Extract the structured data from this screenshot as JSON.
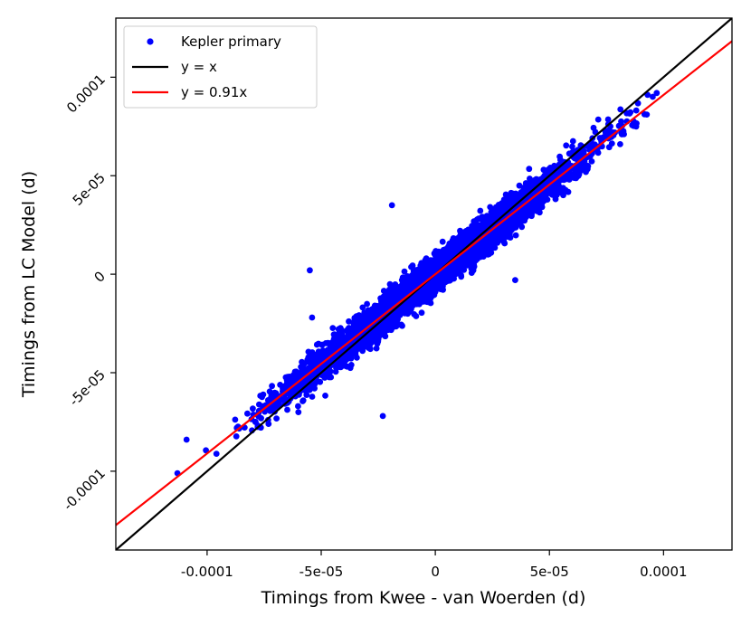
{
  "chart_data": {
    "type": "scatter",
    "title": "",
    "xlabel": "Timings from Kwee - van Woerden (d)",
    "ylabel": "Timings from LC Model (d)",
    "xlim": [
      -0.00014,
      0.00013
    ],
    "ylim": [
      -0.00014,
      0.00013
    ],
    "xticks": [
      -0.0001,
      -5e-05,
      0,
      5e-05,
      0.0001
    ],
    "xtick_labels": [
      "-0.0001",
      "-5e-05",
      "0",
      "5e-05",
      "0.0001"
    ],
    "yticks": [
      -0.0001,
      -5e-05,
      0,
      5e-05,
      0.0001
    ],
    "ytick_labels": [
      "-0.0001",
      "-5e-05",
      "0",
      "5e-05",
      "0.0001"
    ],
    "grid": false,
    "legend_position": "top-left",
    "series": [
      {
        "name": "Kepler primary",
        "kind": "scatter",
        "color": "#0000ff",
        "approx_point_count": 6000,
        "slope": 0.91,
        "scatter_std": 4.3e-06,
        "x_range": [
          -0.000115,
          9.8e-05
        ],
        "outliers": [
          [
            -5.5e-05,
            2e-06
          ],
          [
            -5.4e-05,
            -2.2e-05
          ],
          [
            -1.9e-05,
            3.5e-05
          ],
          [
            -2.3e-05,
            -7.2e-05
          ],
          [
            3.5e-05,
            -3e-06
          ],
          [
            9.7e-05,
            9.2e-05
          ],
          [
            9.3e-05,
            9.1e-05
          ],
          [
            -0.000113,
            -0.000101
          ],
          [
            -0.000109,
            -8.4e-05
          ],
          [
            -6e-05,
            -7e-05
          ],
          [
            8.1e-05,
            6.6e-05
          ],
          [
            8.8e-05,
            7.5e-05
          ]
        ]
      },
      {
        "name": "y = x",
        "kind": "line",
        "color": "#000000",
        "slope": 1.0
      },
      {
        "name": "y = 0.91x",
        "kind": "line",
        "color": "#ff0000",
        "slope": 0.91
      }
    ]
  }
}
